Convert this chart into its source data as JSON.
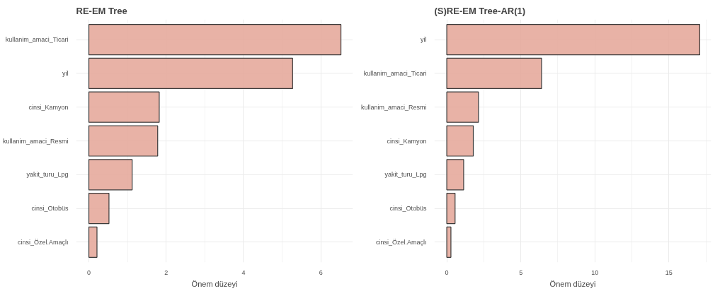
{
  "chart_data": [
    {
      "type": "bar",
      "orientation": "horizontal",
      "title": "RE-EM Tree",
      "xlabel": "Önem düzeyi",
      "categories": [
        "kullanim_amaci_Ticari",
        "yil",
        "cinsi_Kamyon",
        "kullanim_amaci_Resmi",
        "yakit_turu_Lpg",
        "cinsi_Otobüs",
        "cinsi_Özel.Amaçlı"
      ],
      "values": [
        6.52,
        5.27,
        1.82,
        1.78,
        1.12,
        0.52,
        0.21
      ],
      "color": "#e5aa9c",
      "xlim": [
        -0.33,
        6.83
      ],
      "xticks": [
        0,
        2,
        4,
        6
      ],
      "grid": true
    },
    {
      "type": "bar",
      "orientation": "horizontal",
      "title": "(S)RE-EM Tree-AR(1)",
      "xlabel": "Önem düzeyi",
      "categories": [
        "yil",
        "kullanim_amaci_Ticari",
        "kullanim_amaci_Resmi",
        "cinsi_Kamyon",
        "yakit_turu_Lpg",
        "cinsi_Otobüs",
        "cinsi_Özel.Amaçlı"
      ],
      "values": [
        17.08,
        6.4,
        2.14,
        1.79,
        1.14,
        0.56,
        0.28
      ],
      "color": "#e5aa9c",
      "xlim": [
        -0.84,
        17.85
      ],
      "xticks": [
        0,
        5,
        10,
        15
      ],
      "grid": true
    }
  ]
}
